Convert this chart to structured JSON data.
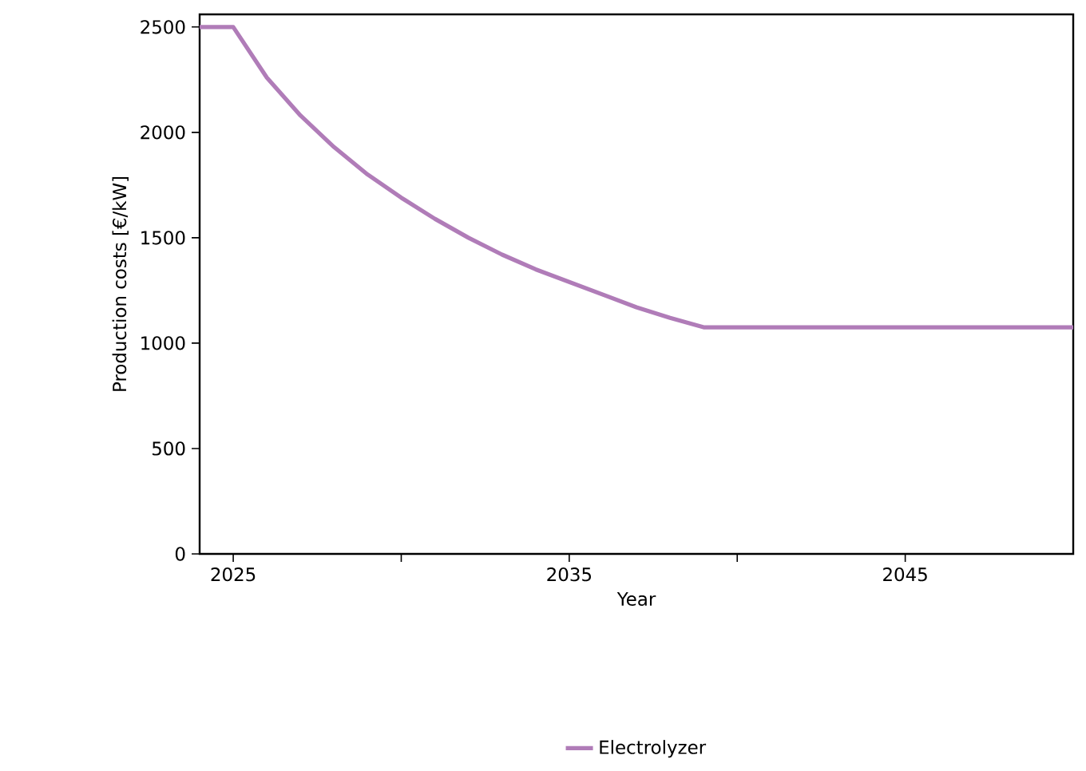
{
  "chart_data": {
    "type": "line",
    "xlabel": "Year",
    "ylabel": "Production costs [€/kW]",
    "x": [
      2024,
      2025,
      2026,
      2027,
      2028,
      2029,
      2030,
      2031,
      2032,
      2033,
      2034,
      2035,
      2036,
      2037,
      2038,
      2039,
      2050
    ],
    "series": [
      {
        "name": "Electrolyzer",
        "color": "#b07cb8",
        "values": [
          2500,
          2500,
          2260,
          2080,
          1930,
          1800,
          1690,
          1590,
          1500,
          1420,
          1350,
          1290,
          1230,
          1170,
          1120,
          1075,
          1075
        ]
      }
    ],
    "xlim": [
      2024,
      2050
    ],
    "ylim": [
      0,
      2560
    ],
    "xticks": [
      2025,
      {
        "value": 2030,
        "label": null
      },
      2035,
      {
        "value": 2040,
        "label": null
      },
      2045
    ],
    "yticks": [
      0,
      500,
      1000,
      1500,
      2000,
      2500
    ],
    "legend": "bottom",
    "grid": false,
    "marker": "none",
    "line_style": "solid"
  }
}
